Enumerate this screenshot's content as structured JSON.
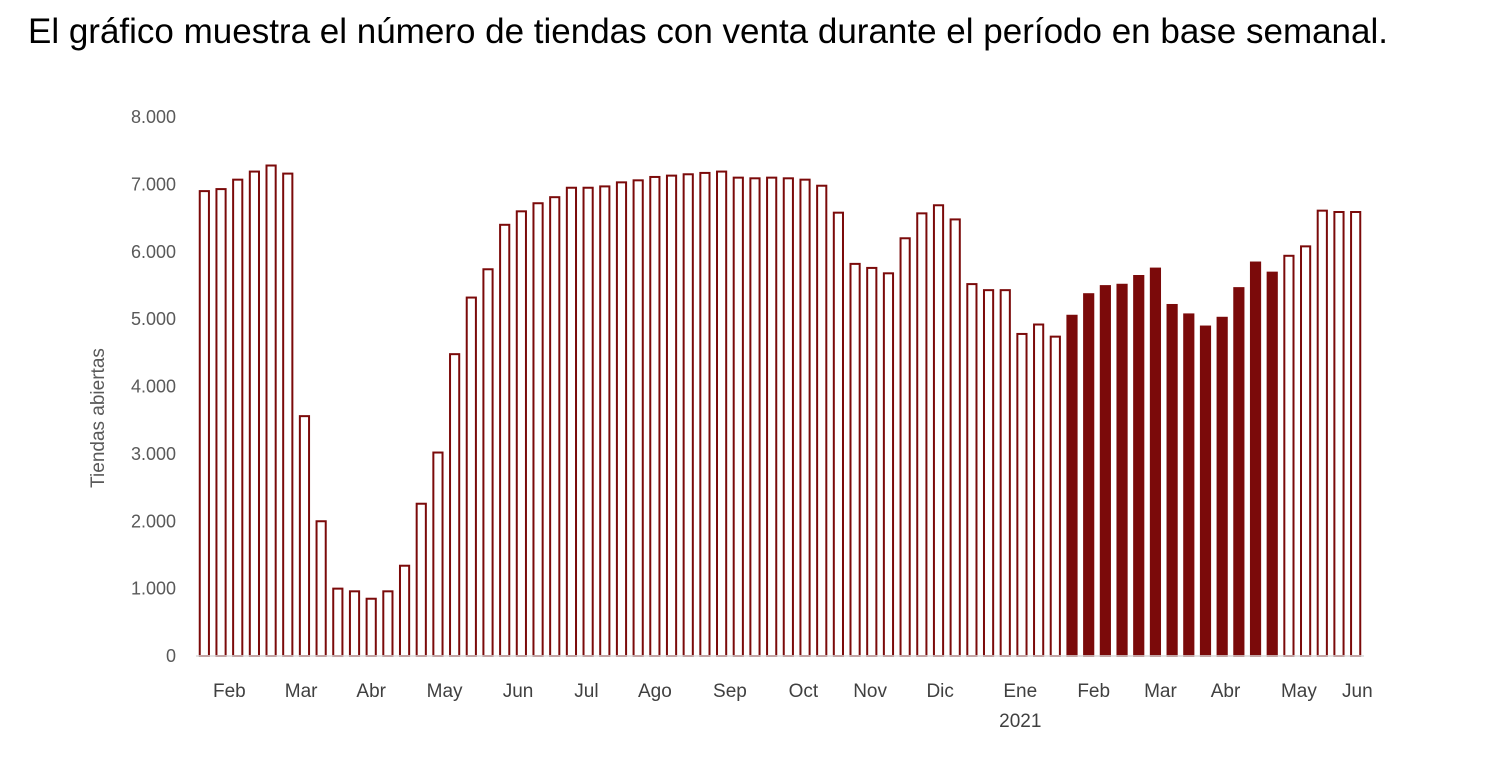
{
  "caption": "El gráfico muestra el número de tiendas con venta durante el período en base semanal.",
  "chart_data": {
    "type": "bar",
    "title": "",
    "xlabel": "",
    "ylabel": "Tiendas abiertas",
    "ylim": [
      0,
      8000
    ],
    "y_ticks": [
      0,
      1000,
      2000,
      3000,
      4000,
      5000,
      6000,
      7000,
      8000
    ],
    "y_tick_labels": [
      "0",
      "1.000",
      "2.000",
      "3.000",
      "4.000",
      "5.000",
      "6.000",
      "7.000",
      "8.000"
    ],
    "grid": false,
    "legend": "none",
    "colors": {
      "outline": "#7b0a0a",
      "hollow_fill": "#ffffff",
      "solid_fill": "#7b0a0a"
    },
    "values": [
      6900,
      6930,
      7070,
      7190,
      7280,
      7160,
      3560,
      2000,
      1000,
      960,
      850,
      960,
      1340,
      2260,
      3020,
      4480,
      5320,
      5740,
      6400,
      6600,
      6720,
      6810,
      6950,
      6950,
      6970,
      7030,
      7060,
      7110,
      7130,
      7150,
      7170,
      7190,
      7100,
      7090,
      7100,
      7090,
      7070,
      6980,
      6580,
      5820,
      5760,
      5680,
      6200,
      6570,
      6690,
      6480,
      5520,
      5430,
      5430,
      4780,
      4920,
      4740,
      5050,
      5370,
      5490,
      5510,
      5640,
      5750,
      5210,
      5070,
      4890,
      5020,
      5460,
      5840,
      5690,
      5940,
      6080,
      6610,
      6590,
      6590
    ],
    "highlighted_range": [
      52,
      64
    ],
    "month_labels": [
      {
        "label": "Feb",
        "pos": 1.5
      },
      {
        "label": "Mar",
        "pos": 5.8
      },
      {
        "label": "Abr",
        "pos": 10.0
      },
      {
        "label": "May",
        "pos": 14.4
      },
      {
        "label": "Jun",
        "pos": 18.8
      },
      {
        "label": "Jul",
        "pos": 22.9
      },
      {
        "label": "Ago",
        "pos": 27.0
      },
      {
        "label": "Sep",
        "pos": 31.5
      },
      {
        "label": "Oct",
        "pos": 35.9
      },
      {
        "label": "Nov",
        "pos": 39.9
      },
      {
        "label": "Dic",
        "pos": 44.1
      },
      {
        "label": "Ene",
        "pos": 48.9
      },
      {
        "label": "Feb",
        "pos": 53.3
      },
      {
        "label": "Mar",
        "pos": 57.3
      },
      {
        "label": "Abr",
        "pos": 61.2
      },
      {
        "label": "May",
        "pos": 65.6
      },
      {
        "label": "Jun",
        "pos": 69.1
      }
    ],
    "year_label": {
      "label": "2021",
      "pos": 48.9
    }
  }
}
